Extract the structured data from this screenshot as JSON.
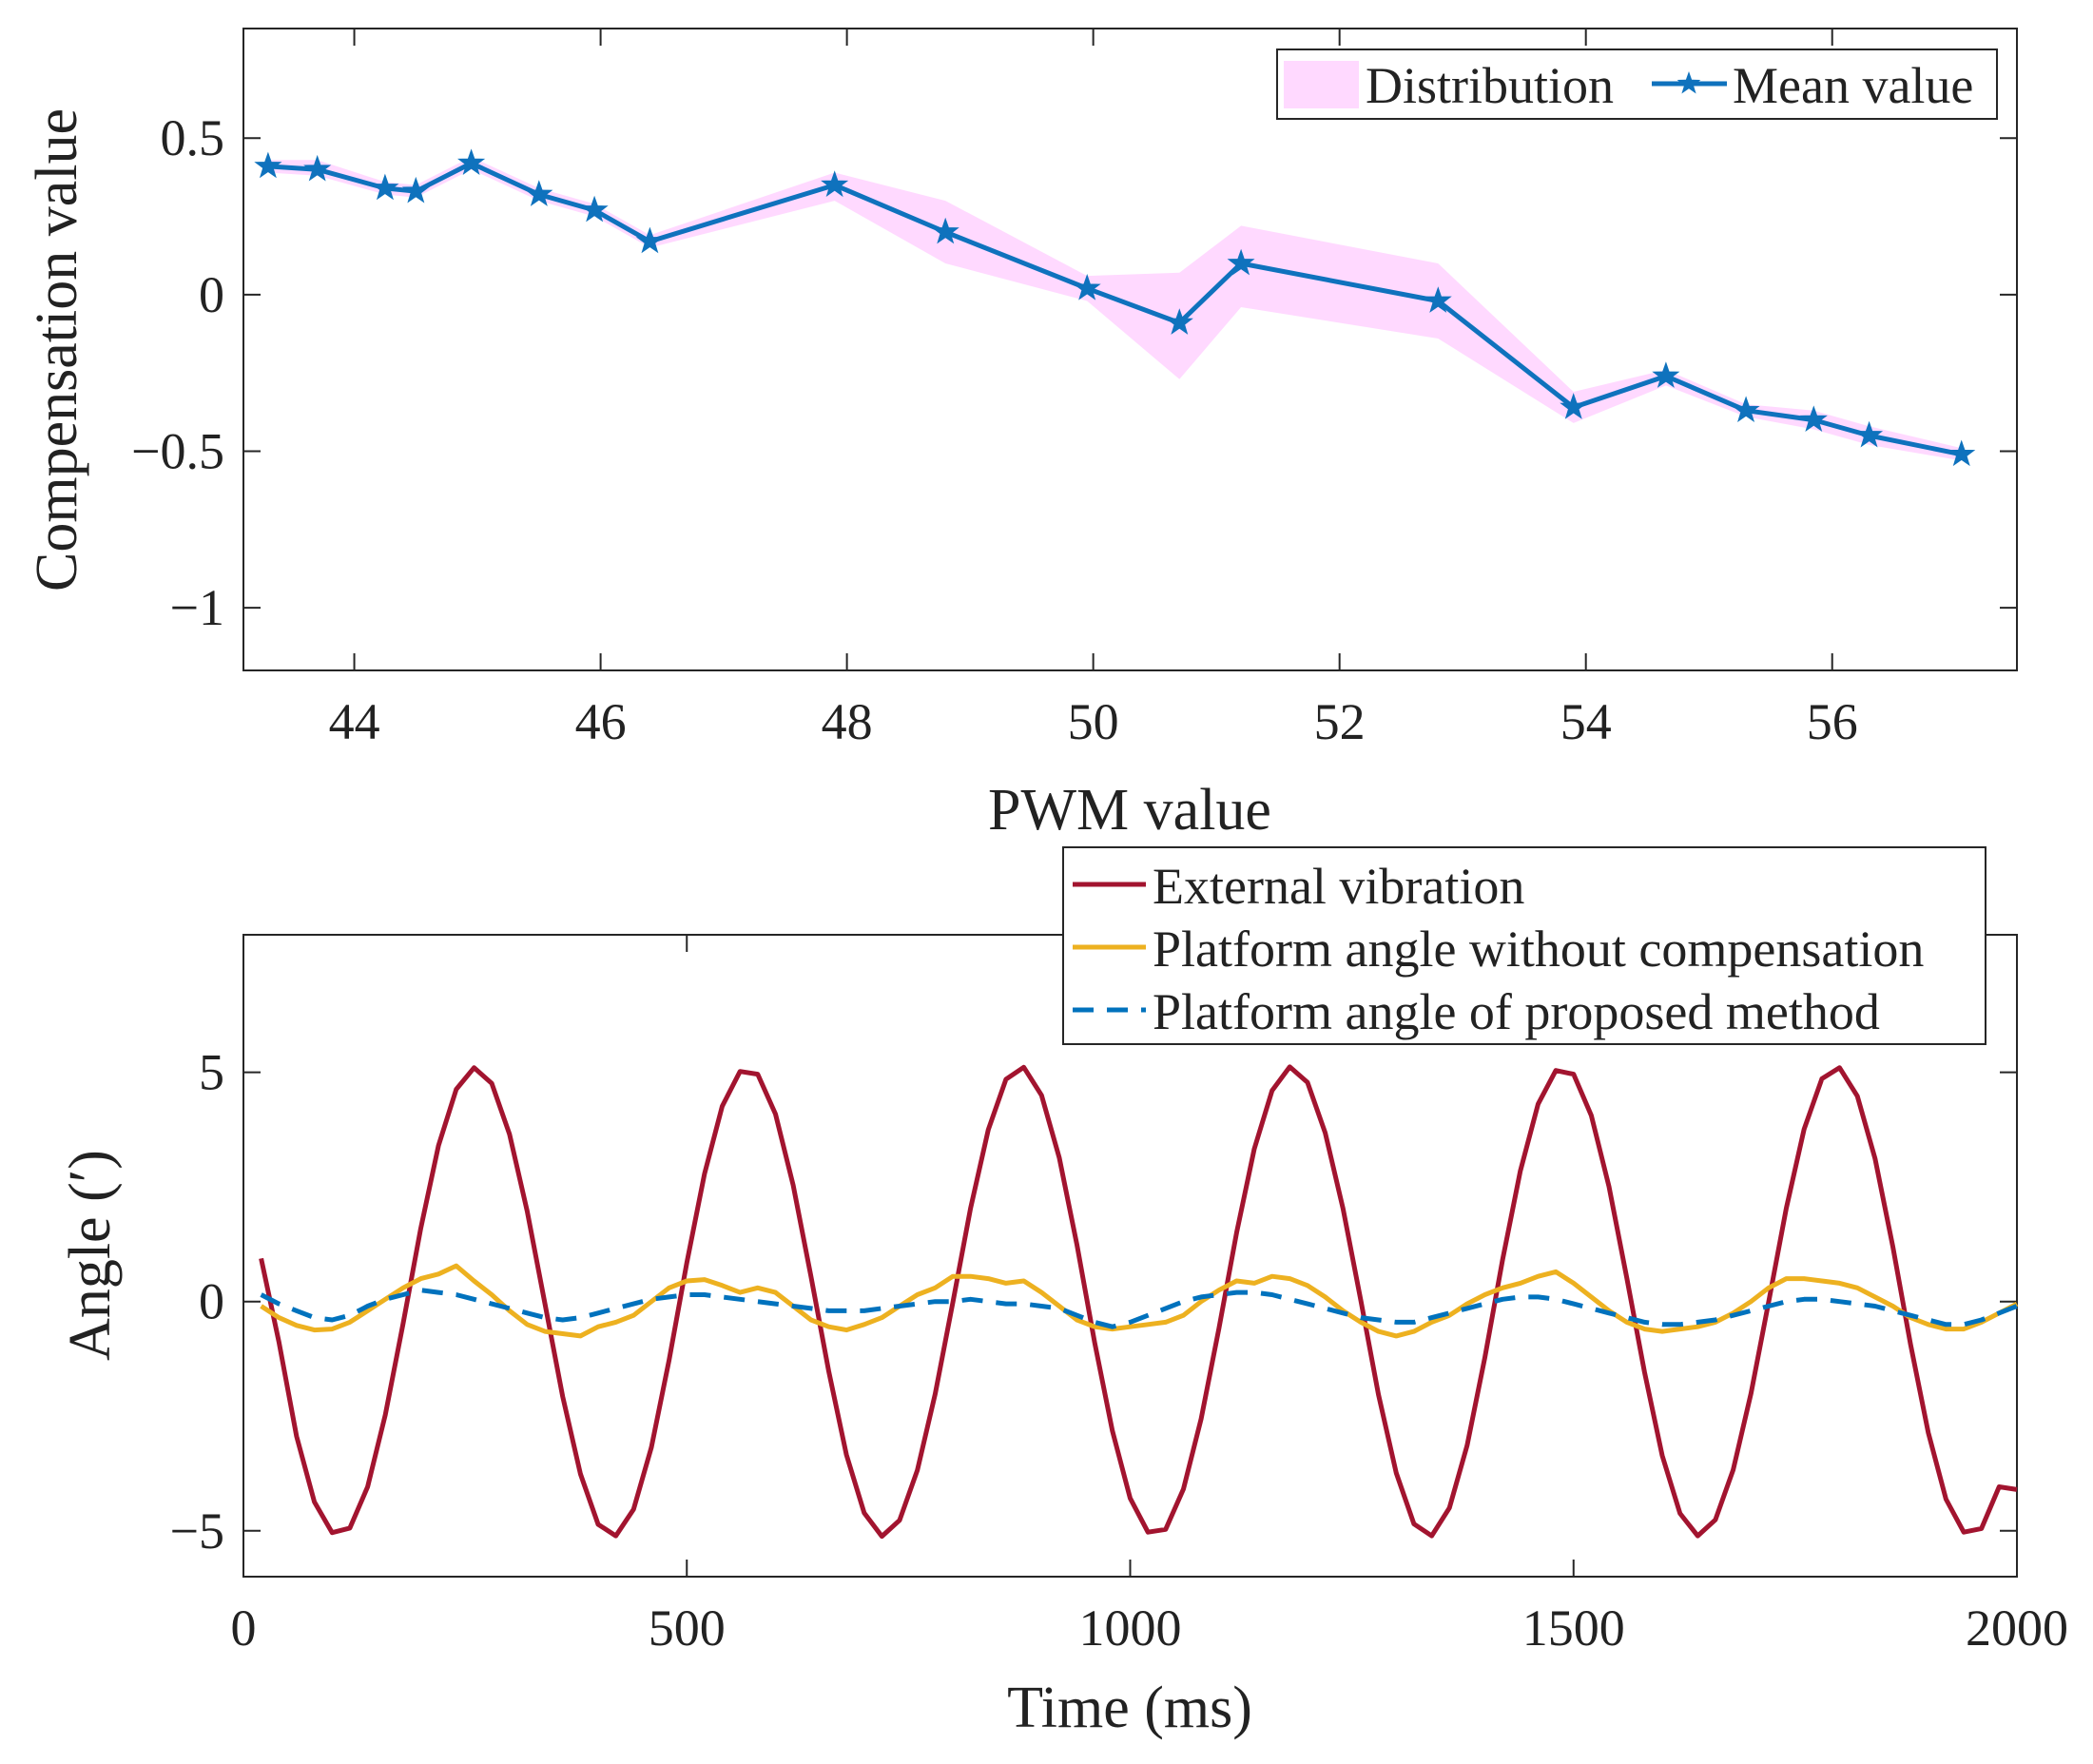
{
  "chart_data": [
    {
      "type": "line",
      "xlabel": "PWM value",
      "ylabel": "Compensation value",
      "xlim": [
        43.1,
        57.5
      ],
      "ylim": [
        -1.2,
        0.85
      ],
      "xticks": [
        44,
        46,
        48,
        50,
        52,
        54,
        56
      ],
      "xtick_labels": [
        "44",
        "46",
        "48",
        "50",
        "52",
        "54",
        "56"
      ],
      "yticks": [
        0.5,
        0,
        -0.5,
        -1
      ],
      "ytick_labels": [
        "0.5",
        "0",
        "−0.5",
        "−1"
      ],
      "legend": [
        "Distribution",
        "Mean value"
      ],
      "legend_location": "top-right",
      "x": [
        43.3,
        43.7,
        44.25,
        44.5,
        44.95,
        45.5,
        45.95,
        46.4,
        47.9,
        48.8,
        49.95,
        50.7,
        51.2,
        52.8,
        53.9,
        54.65,
        55.3,
        55.85,
        56.3,
        57.05
      ],
      "series": [
        {
          "name": "Mean value",
          "color": "#0F72BD",
          "marker": "star",
          "values": [
            0.41,
            0.4,
            0.34,
            0.33,
            0.42,
            0.32,
            0.27,
            0.17,
            0.35,
            0.2,
            0.02,
            -0.09,
            0.1,
            -0.02,
            -0.36,
            -0.26,
            -0.37,
            -0.4,
            -0.45,
            -0.51
          ]
        },
        {
          "name": "Distribution",
          "color": "#FFD9FF",
          "upper": [
            0.43,
            0.43,
            0.36,
            0.35,
            0.44,
            0.34,
            0.29,
            0.19,
            0.39,
            0.3,
            0.06,
            0.07,
            0.22,
            0.1,
            -0.31,
            -0.24,
            -0.35,
            -0.37,
            -0.42,
            -0.49
          ],
          "lower": [
            0.39,
            0.38,
            0.32,
            0.31,
            0.4,
            0.3,
            0.25,
            0.15,
            0.3,
            0.1,
            -0.02,
            -0.27,
            -0.04,
            -0.14,
            -0.41,
            -0.29,
            -0.39,
            -0.43,
            -0.48,
            -0.53
          ]
        }
      ]
    },
    {
      "type": "line",
      "xlabel": "Time (ms)",
      "ylabel": "Angle (′)",
      "xlim": [
        0,
        2000
      ],
      "ylim": [
        -6,
        8
      ],
      "xticks": [
        0,
        500,
        1000,
        1500,
        2000
      ],
      "xtick_labels": [
        "0",
        "500",
        "1000",
        "1500",
        "2000"
      ],
      "yticks": [
        5,
        0,
        -5
      ],
      "ytick_labels": [
        "5",
        "0",
        "−5"
      ],
      "legend": [
        "External vibration",
        "Platform angle without compensation",
        "Platform angle of proposed method"
      ],
      "legend_location": "top-right",
      "series": [
        {
          "name": "External vibration",
          "color": "#A2142F",
          "style": "solid",
          "x": [
            20,
            40,
            60,
            80,
            100,
            120,
            140,
            160,
            180,
            200,
            220,
            240,
            260,
            280,
            300,
            320,
            340,
            360,
            380,
            400,
            420,
            440,
            460,
            480,
            500,
            520,
            540,
            560,
            580,
            600,
            620,
            640,
            660,
            680,
            700,
            720,
            740,
            760,
            780,
            800,
            820,
            840,
            860,
            880,
            900,
            920,
            940,
            960,
            980,
            1000,
            1020,
            1040,
            1060,
            1080,
            1100,
            1120,
            1140,
            1160,
            1180,
            1200,
            1220,
            1240,
            1260,
            1280,
            1300,
            1320,
            1340,
            1360,
            1380,
            1400,
            1420,
            1440,
            1460,
            1480,
            1500,
            1520,
            1540,
            1560,
            1580,
            1600,
            1620,
            1640,
            1660,
            1680,
            1700,
            1720,
            1740,
            1760,
            1780,
            1800,
            1820,
            1840,
            1860,
            1880,
            1900,
            1920,
            1940,
            1960,
            1980,
            2000
          ],
          "values": [
            0.94,
            -0.88,
            -2.94,
            -4.37,
            -5.04,
            -4.94,
            -4.04,
            -2.47,
            -0.48,
            1.6,
            3.4,
            4.63,
            5.1,
            4.76,
            3.65,
            1.97,
            -0.04,
            -2.07,
            -3.76,
            -4.86,
            -5.11,
            -4.53,
            -3.18,
            -1.28,
            0.85,
            2.79,
            4.26,
            5.02,
            4.96,
            4.09,
            2.54,
            0.55,
            -1.52,
            -3.34,
            -4.61,
            -5.12,
            -4.77,
            -3.68,
            -2.02,
            -0.02,
            2.03,
            3.75,
            4.85,
            5.11,
            4.5,
            3.14,
            1.24,
            -0.9,
            -2.82,
            -4.29,
            -5.03,
            -4.97,
            -4.09,
            -2.56,
            -0.59,
            1.5,
            3.33,
            4.6,
            5.12,
            4.78,
            3.68,
            2.03,
            0.03,
            -2.03,
            -3.74,
            -4.85,
            -5.11,
            -4.5,
            -3.14,
            -1.22,
            0.91,
            2.85,
            4.31,
            5.04,
            4.96,
            4.06,
            2.51,
            0.52,
            -1.54,
            -3.36,
            -4.62,
            -5.11,
            -4.76,
            -3.67,
            -2.01,
            -0.01,
            2.04,
            3.76,
            4.86,
            5.1,
            4.48,
            3.12,
            1.2,
            -0.93,
            -2.86,
            -4.31,
            -5.03,
            -4.95,
            -4.04,
            -4.1
          ]
        },
        {
          "name": "Platform angle without compensation",
          "color": "#EDB120",
          "style": "solid",
          "x": [
            20,
            40,
            60,
            80,
            100,
            120,
            140,
            160,
            180,
            200,
            220,
            240,
            260,
            280,
            300,
            320,
            340,
            360,
            380,
            400,
            420,
            440,
            460,
            480,
            500,
            520,
            540,
            560,
            580,
            600,
            620,
            640,
            660,
            680,
            700,
            720,
            740,
            760,
            780,
            800,
            820,
            840,
            860,
            880,
            900,
            920,
            940,
            960,
            980,
            1000,
            1020,
            1040,
            1060,
            1080,
            1100,
            1120,
            1140,
            1160,
            1180,
            1200,
            1220,
            1240,
            1260,
            1280,
            1300,
            1320,
            1340,
            1360,
            1380,
            1400,
            1420,
            1440,
            1460,
            1480,
            1500,
            1520,
            1540,
            1560,
            1580,
            1600,
            1620,
            1640,
            1660,
            1680,
            1700,
            1720,
            1740,
            1760,
            1780,
            1800,
            1820,
            1840,
            1860,
            1880,
            1900,
            1920,
            1940,
            1960,
            1980,
            2000
          ],
          "values": [
            -0.1,
            -0.35,
            -0.52,
            -0.62,
            -0.6,
            -0.45,
            -0.2,
            0.05,
            0.3,
            0.5,
            0.6,
            0.78,
            0.45,
            0.15,
            -0.2,
            -0.5,
            -0.65,
            -0.7,
            -0.75,
            -0.55,
            -0.45,
            -0.3,
            0.0,
            0.3,
            0.45,
            0.48,
            0.35,
            0.2,
            0.3,
            0.2,
            -0.1,
            -0.4,
            -0.55,
            -0.62,
            -0.5,
            -0.35,
            -0.1,
            0.15,
            0.3,
            0.55,
            0.55,
            0.5,
            0.4,
            0.45,
            0.2,
            -0.1,
            -0.4,
            -0.55,
            -0.6,
            -0.55,
            -0.5,
            -0.45,
            -0.3,
            0.0,
            0.25,
            0.45,
            0.4,
            0.55,
            0.5,
            0.35,
            0.1,
            -0.2,
            -0.45,
            -0.65,
            -0.75,
            -0.65,
            -0.45,
            -0.3,
            -0.05,
            0.15,
            0.3,
            0.4,
            0.55,
            0.65,
            0.4,
            0.1,
            -0.2,
            -0.45,
            -0.6,
            -0.65,
            -0.6,
            -0.55,
            -0.45,
            -0.25,
            0.0,
            0.3,
            0.5,
            0.5,
            0.45,
            0.4,
            0.3,
            0.1,
            -0.1,
            -0.35,
            -0.5,
            -0.6,
            -0.6,
            -0.45,
            -0.25,
            -0.05
          ]
        },
        {
          "name": "Platform angle of proposed method",
          "color": "#0072BD",
          "style": "dashed",
          "x": [
            20,
            40,
            60,
            80,
            100,
            120,
            140,
            160,
            180,
            200,
            220,
            240,
            260,
            280,
            300,
            320,
            340,
            360,
            380,
            400,
            420,
            440,
            460,
            480,
            500,
            520,
            540,
            560,
            580,
            600,
            620,
            640,
            660,
            680,
            700,
            720,
            740,
            760,
            780,
            800,
            820,
            840,
            860,
            880,
            900,
            920,
            940,
            960,
            980,
            1000,
            1020,
            1040,
            1060,
            1080,
            1100,
            1120,
            1140,
            1160,
            1180,
            1200,
            1220,
            1240,
            1260,
            1280,
            1300,
            1320,
            1340,
            1360,
            1380,
            1400,
            1420,
            1440,
            1460,
            1480,
            1500,
            1520,
            1540,
            1560,
            1580,
            1600,
            1620,
            1640,
            1660,
            1680,
            1700,
            1720,
            1740,
            1760,
            1780,
            1800,
            1820,
            1840,
            1860,
            1880,
            1900,
            1920,
            1940,
            1960,
            1980,
            2000
          ],
          "values": [
            0.15,
            -0.05,
            -0.2,
            -0.35,
            -0.4,
            -0.3,
            -0.1,
            0.05,
            0.15,
            0.25,
            0.2,
            0.15,
            0.05,
            -0.05,
            -0.15,
            -0.25,
            -0.35,
            -0.4,
            -0.35,
            -0.25,
            -0.15,
            -0.05,
            0.05,
            0.1,
            0.15,
            0.15,
            0.1,
            0.05,
            0.0,
            -0.05,
            -0.1,
            -0.15,
            -0.2,
            -0.2,
            -0.2,
            -0.15,
            -0.1,
            -0.05,
            0.0,
            0.0,
            0.05,
            0.0,
            -0.05,
            -0.05,
            -0.1,
            -0.15,
            -0.3,
            -0.45,
            -0.55,
            -0.45,
            -0.3,
            -0.15,
            0.0,
            0.1,
            0.15,
            0.2,
            0.2,
            0.15,
            0.05,
            -0.05,
            -0.15,
            -0.25,
            -0.35,
            -0.4,
            -0.45,
            -0.45,
            -0.35,
            -0.25,
            -0.15,
            -0.05,
            0.05,
            0.1,
            0.1,
            0.05,
            -0.05,
            -0.15,
            -0.25,
            -0.35,
            -0.45,
            -0.5,
            -0.5,
            -0.45,
            -0.4,
            -0.3,
            -0.2,
            -0.1,
            0.0,
            0.05,
            0.05,
            0.0,
            -0.05,
            -0.1,
            -0.2,
            -0.3,
            -0.4,
            -0.5,
            -0.5,
            -0.4,
            -0.25,
            -0.1
          ]
        }
      ]
    }
  ]
}
